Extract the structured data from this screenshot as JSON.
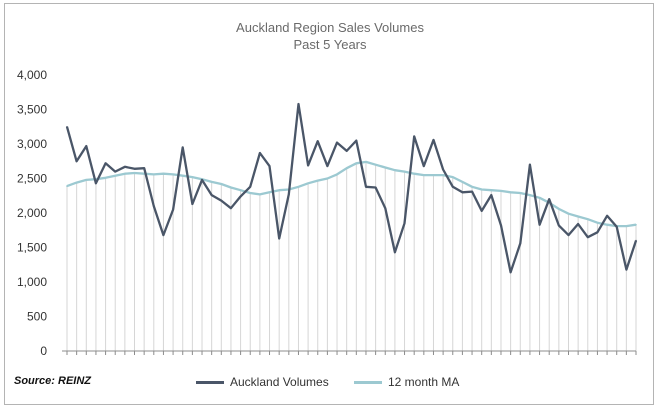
{
  "chart_data": {
    "type": "line",
    "title": "Auckland Region Sales Volumes",
    "subtitle": "Past 5 Years",
    "xlabel": "",
    "ylabel": "",
    "ylim": [
      0,
      4000
    ],
    "yticks": [
      0,
      500,
      1000,
      1500,
      2000,
      2500,
      3000,
      3500,
      4000
    ],
    "ytick_labels": [
      "0",
      "500",
      "1,000",
      "1,500",
      "2,000",
      "2,500",
      "3,000",
      "3,500",
      "4,000"
    ],
    "grid": "vertical drop lines",
    "legend_position": "bottom-center",
    "x": [
      1,
      2,
      3,
      4,
      5,
      6,
      7,
      8,
      9,
      10,
      11,
      12,
      13,
      14,
      15,
      16,
      17,
      18,
      19,
      20,
      21,
      22,
      23,
      24,
      25,
      26,
      27,
      28,
      29,
      30,
      31,
      32,
      33,
      34,
      35,
      36,
      37,
      38,
      39,
      40,
      41,
      42,
      43,
      44,
      45,
      46,
      47,
      48,
      49,
      50,
      51,
      52,
      53,
      54,
      55,
      56,
      57,
      58,
      59,
      60
    ],
    "series": [
      {
        "name": "Auckland Volumes",
        "color": "#4a5668",
        "values": [
          3250,
          2750,
          2970,
          2430,
          2720,
          2600,
          2670,
          2640,
          2650,
          2100,
          1680,
          2050,
          2950,
          2130,
          2480,
          2260,
          2180,
          2070,
          2240,
          2380,
          2870,
          2680,
          1630,
          2270,
          3580,
          2690,
          3040,
          2680,
          3020,
          2900,
          3050,
          2380,
          2370,
          2070,
          1430,
          1850,
          3110,
          2680,
          3060,
          2630,
          2380,
          2300,
          2310,
          2030,
          2260,
          1820,
          1140,
          1560,
          2700,
          1830,
          2200,
          1820,
          1680,
          1840,
          1650,
          1720,
          1960,
          1800,
          1180,
          1600
        ]
      },
      {
        "name": "12 month MA",
        "color": "#9cc9d1",
        "values": [
          2390,
          2440,
          2480,
          2490,
          2510,
          2540,
          2570,
          2580,
          2570,
          2560,
          2570,
          2560,
          2540,
          2520,
          2490,
          2450,
          2420,
          2370,
          2330,
          2290,
          2270,
          2300,
          2330,
          2340,
          2380,
          2430,
          2470,
          2500,
          2560,
          2650,
          2720,
          2740,
          2700,
          2660,
          2620,
          2600,
          2570,
          2550,
          2550,
          2550,
          2520,
          2450,
          2380,
          2340,
          2330,
          2320,
          2300,
          2290,
          2260,
          2220,
          2150,
          2060,
          1990,
          1950,
          1910,
          1860,
          1830,
          1810,
          1810,
          1830
        ]
      }
    ]
  },
  "footer": {
    "source": "Source: REINZ"
  }
}
